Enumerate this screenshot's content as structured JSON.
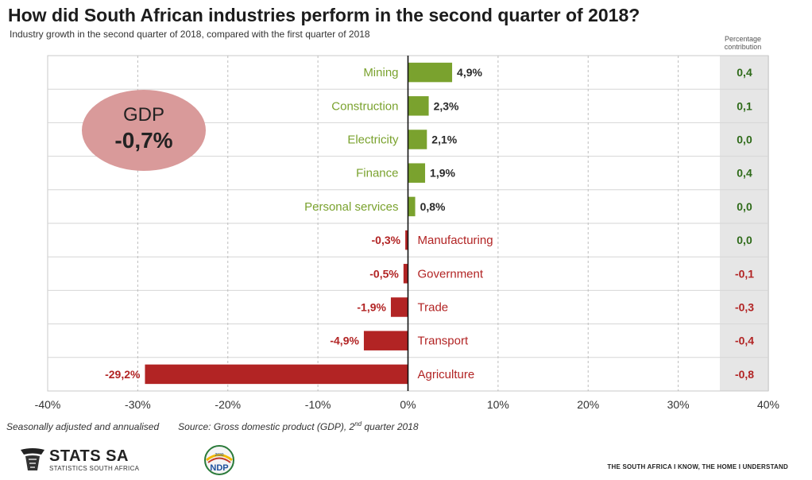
{
  "title": "How did South African industries perform in the second quarter of 2018?",
  "subtitle": "Industry growth in the second quarter of 2018, compared with the first quarter of 2018",
  "contribution_header": "Percentage contribution",
  "gdp": {
    "label": "GDP",
    "value": "-0,7%"
  },
  "footnote": {
    "left": "Seasonally adjusted and annualised",
    "source_prefix": "Source: Gross domestic product (GDP), 2",
    "source_sup": "nd",
    "source_suffix": " quarter 2018"
  },
  "footer": {
    "org_name": "STATS SA",
    "org_sub": "STATISTICS SOUTH AFRICA",
    "ndp_label": "NDP",
    "ndp_year": "2030",
    "tagline": "THE SOUTH AFRICA I KNOW, THE HOME I UNDERSTAND"
  },
  "colors": {
    "positive": "#7aa22e",
    "negative": "#b22424",
    "gdp_circle": "#d99a9a",
    "panel": "#e6e6e6"
  },
  "chart_data": {
    "type": "bar",
    "orientation": "horizontal",
    "categories": [
      "Mining",
      "Construction",
      "Electricity",
      "Finance",
      "Personal services",
      "Manufacturing",
      "Government",
      "Trade",
      "Transport",
      "Agriculture"
    ],
    "values": [
      4.9,
      2.3,
      2.1,
      1.9,
      0.8,
      -0.3,
      -0.5,
      -1.9,
      -4.9,
      -29.2
    ],
    "value_labels": [
      "4,9%",
      "2,3%",
      "2,1%",
      "1,9%",
      "0,8%",
      "-0,3%",
      "-0,5%",
      "-1,9%",
      "-4,9%",
      "-29,2%"
    ],
    "contributions": [
      "0,4",
      "0,1",
      "0,0",
      "0,4",
      "0,0",
      "0,0",
      "-0,1",
      "-0,3",
      "-0,4",
      "-0,8"
    ],
    "xlim": [
      -40,
      40
    ],
    "xticks": [
      -40,
      -30,
      -20,
      -10,
      0,
      10,
      20,
      30,
      40
    ],
    "xtick_labels": [
      "-40%",
      "-30%",
      "-20%",
      "-10%",
      "0%",
      "10%",
      "20%",
      "30%",
      "40%"
    ],
    "grid": true
  }
}
